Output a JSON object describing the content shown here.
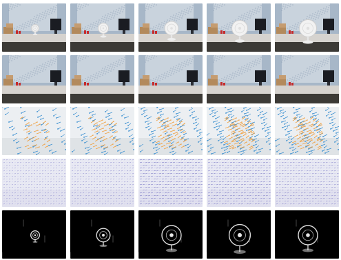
{
  "figure": {
    "rows": [
      {
        "kind": "fan-scene",
        "desc_colors": {
          "wall": "#a7b7c8",
          "map": "#c9d3dd",
          "desk": "#d6d3cf",
          "floor": "#3c3a36",
          "monitor": "#1a1c22"
        },
        "fan_scale": [
          0.55,
          0.75,
          1.0,
          1.15,
          1.25
        ]
      },
      {
        "kind": "scene-no-fan",
        "desc_colors": {
          "wall": "#a7b7c8",
          "map": "#c9d3dd",
          "desk": "#d6d3cf",
          "floor": "#3c3a36",
          "monitor": "#1a1c22"
        }
      },
      {
        "kind": "flow-arrows",
        "desc_colors": {
          "bg": "#eceff2",
          "blue": "#3a8fd0",
          "orange": "#f0a040"
        },
        "density": [
          0.35,
          0.45,
          0.6,
          0.8,
          0.75
        ]
      },
      {
        "kind": "vector-field",
        "desc_colors": {
          "bg": "#e8e9f3",
          "violet": "#5b58b8",
          "light": "#b9b7e6"
        },
        "strength": [
          0.35,
          0.5,
          0.95,
          0.8,
          0.7
        ]
      },
      {
        "kind": "motion-mask",
        "desc_colors": {
          "bg": "#000000",
          "white": "#ffffff"
        },
        "blob_scale": [
          0.45,
          0.7,
          1.0,
          1.1,
          1.0
        ]
      }
    ],
    "columns": 5
  }
}
